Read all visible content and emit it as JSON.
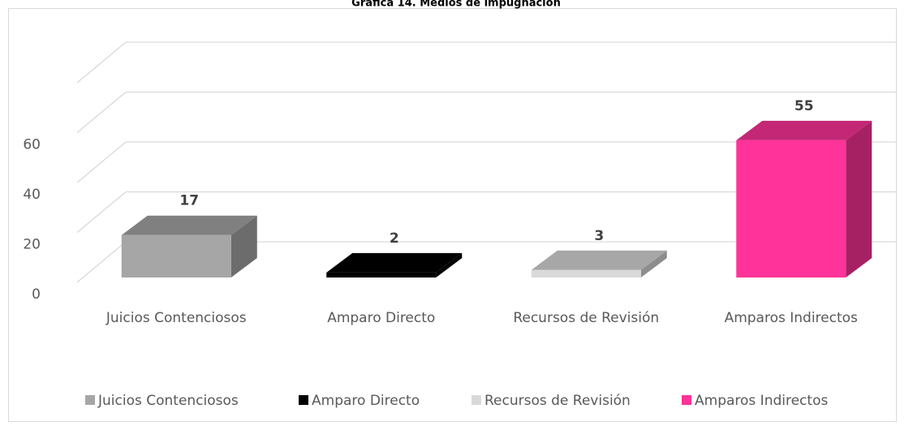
{
  "chart_data": {
    "type": "bar3d",
    "title": "Gráfica 14. Medios de impugnación",
    "categories": [
      "Juicios Contenciosos",
      "Amparo Directo",
      "Recursos de Revisión",
      "Amparos Indirectos"
    ],
    "values": [
      17,
      2,
      3,
      55
    ],
    "colors": [
      "#a6a6a6",
      "#000000",
      "#d9d9d9",
      "#ff3399"
    ],
    "ylim": [
      0,
      80
    ],
    "yticks": [
      0,
      20,
      40,
      60
    ],
    "grid": true,
    "legend": "bottom"
  }
}
